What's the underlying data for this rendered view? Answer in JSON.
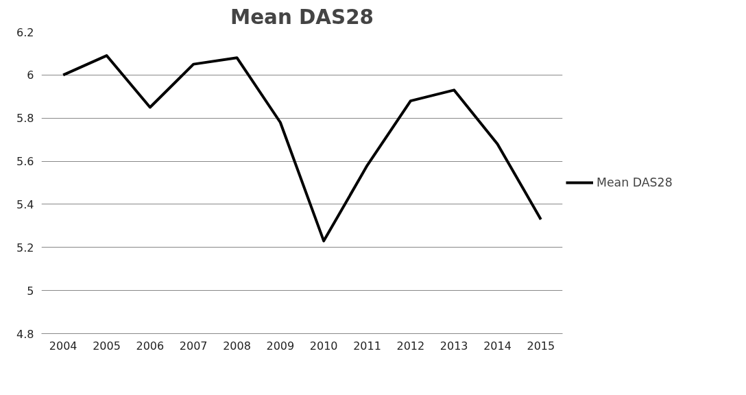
{
  "chart_data": {
    "type": "line",
    "title": "Mean DAS28",
    "categories": [
      "2004",
      "2005",
      "2006",
      "2007",
      "2008",
      "2009",
      "2010",
      "2011",
      "2012",
      "2013",
      "2014",
      "2015"
    ],
    "series": [
      {
        "name": "Mean DAS28",
        "color": "#000000",
        "values": [
          6.0,
          6.09,
          5.85,
          6.05,
          6.08,
          5.78,
          5.23,
          5.58,
          5.88,
          5.93,
          5.68,
          5.33
        ]
      }
    ],
    "ylim": [
      4.8,
      6.2
    ],
    "yticks": [
      4.8,
      5,
      5.2,
      5.4,
      5.6,
      5.8,
      6,
      6.2
    ],
    "grid": "y",
    "legend": "right",
    "marker": "none",
    "line_style": "solid"
  }
}
